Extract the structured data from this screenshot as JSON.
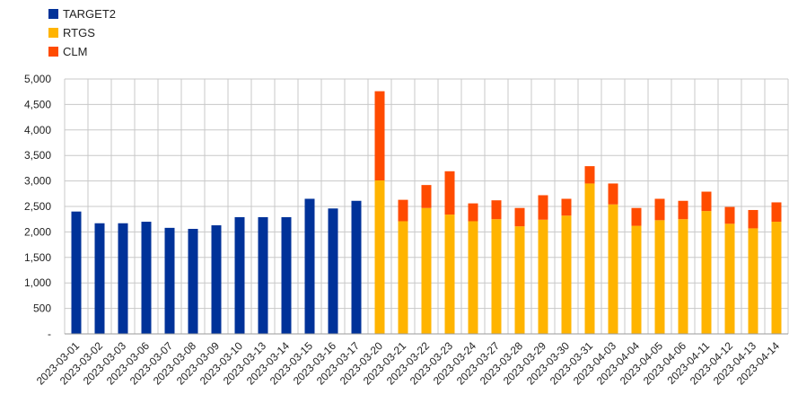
{
  "chart_data": {
    "type": "bar",
    "stacked": true,
    "title": "",
    "xlabel": "",
    "ylabel": "",
    "ylim": [
      0,
      5000
    ],
    "yticks": [
      "-",
      "500",
      "1,000",
      "1,500",
      "2,000",
      "2,500",
      "3,000",
      "3,500",
      "4,000",
      "4,500",
      "5,000"
    ],
    "grid": true,
    "legend_position": "top-left",
    "categories": [
      "2023-03-01",
      "2023-03-02",
      "2023-03-03",
      "2023-03-06",
      "2023-03-07",
      "2023-03-08",
      "2023-03-09",
      "2023-03-10",
      "2023-03-13",
      "2023-03-14",
      "2023-03-15",
      "2023-03-16",
      "2023-03-17",
      "2023-03-20",
      "2023-03-21",
      "2023-03-22",
      "2023-03-23",
      "2023-03-24",
      "2023-03-27",
      "2023-03-28",
      "2023-03-29",
      "2023-03-30",
      "2023-03-31",
      "2023-04-03",
      "2023-04-04",
      "2023-04-05",
      "2023-04-06",
      "2023-04-11",
      "2023-04-12",
      "2023-04-13",
      "2023-04-14"
    ],
    "series": [
      {
        "name": "TARGET2",
        "color": "#003299",
        "values": [
          2400,
          2170,
          2170,
          2200,
          2080,
          2060,
          2130,
          2290,
          2290,
          2290,
          2650,
          2460,
          2610,
          0,
          0,
          0,
          0,
          0,
          0,
          0,
          0,
          0,
          0,
          0,
          0,
          0,
          0,
          0,
          0,
          0,
          0
        ]
      },
      {
        "name": "RTGS",
        "color": "#FFB400",
        "values": [
          0,
          0,
          0,
          0,
          0,
          0,
          0,
          0,
          0,
          0,
          0,
          0,
          0,
          3010,
          2210,
          2470,
          2340,
          2210,
          2250,
          2110,
          2240,
          2320,
          2950,
          2540,
          2120,
          2230,
          2250,
          2410,
          2160,
          2070,
          2200
        ]
      },
      {
        "name": "CLM",
        "color": "#FF4B00",
        "values": [
          0,
          0,
          0,
          0,
          0,
          0,
          0,
          0,
          0,
          0,
          0,
          0,
          0,
          1750,
          420,
          450,
          850,
          350,
          370,
          360,
          480,
          330,
          340,
          410,
          350,
          420,
          360,
          380,
          330,
          360,
          380
        ]
      }
    ]
  }
}
